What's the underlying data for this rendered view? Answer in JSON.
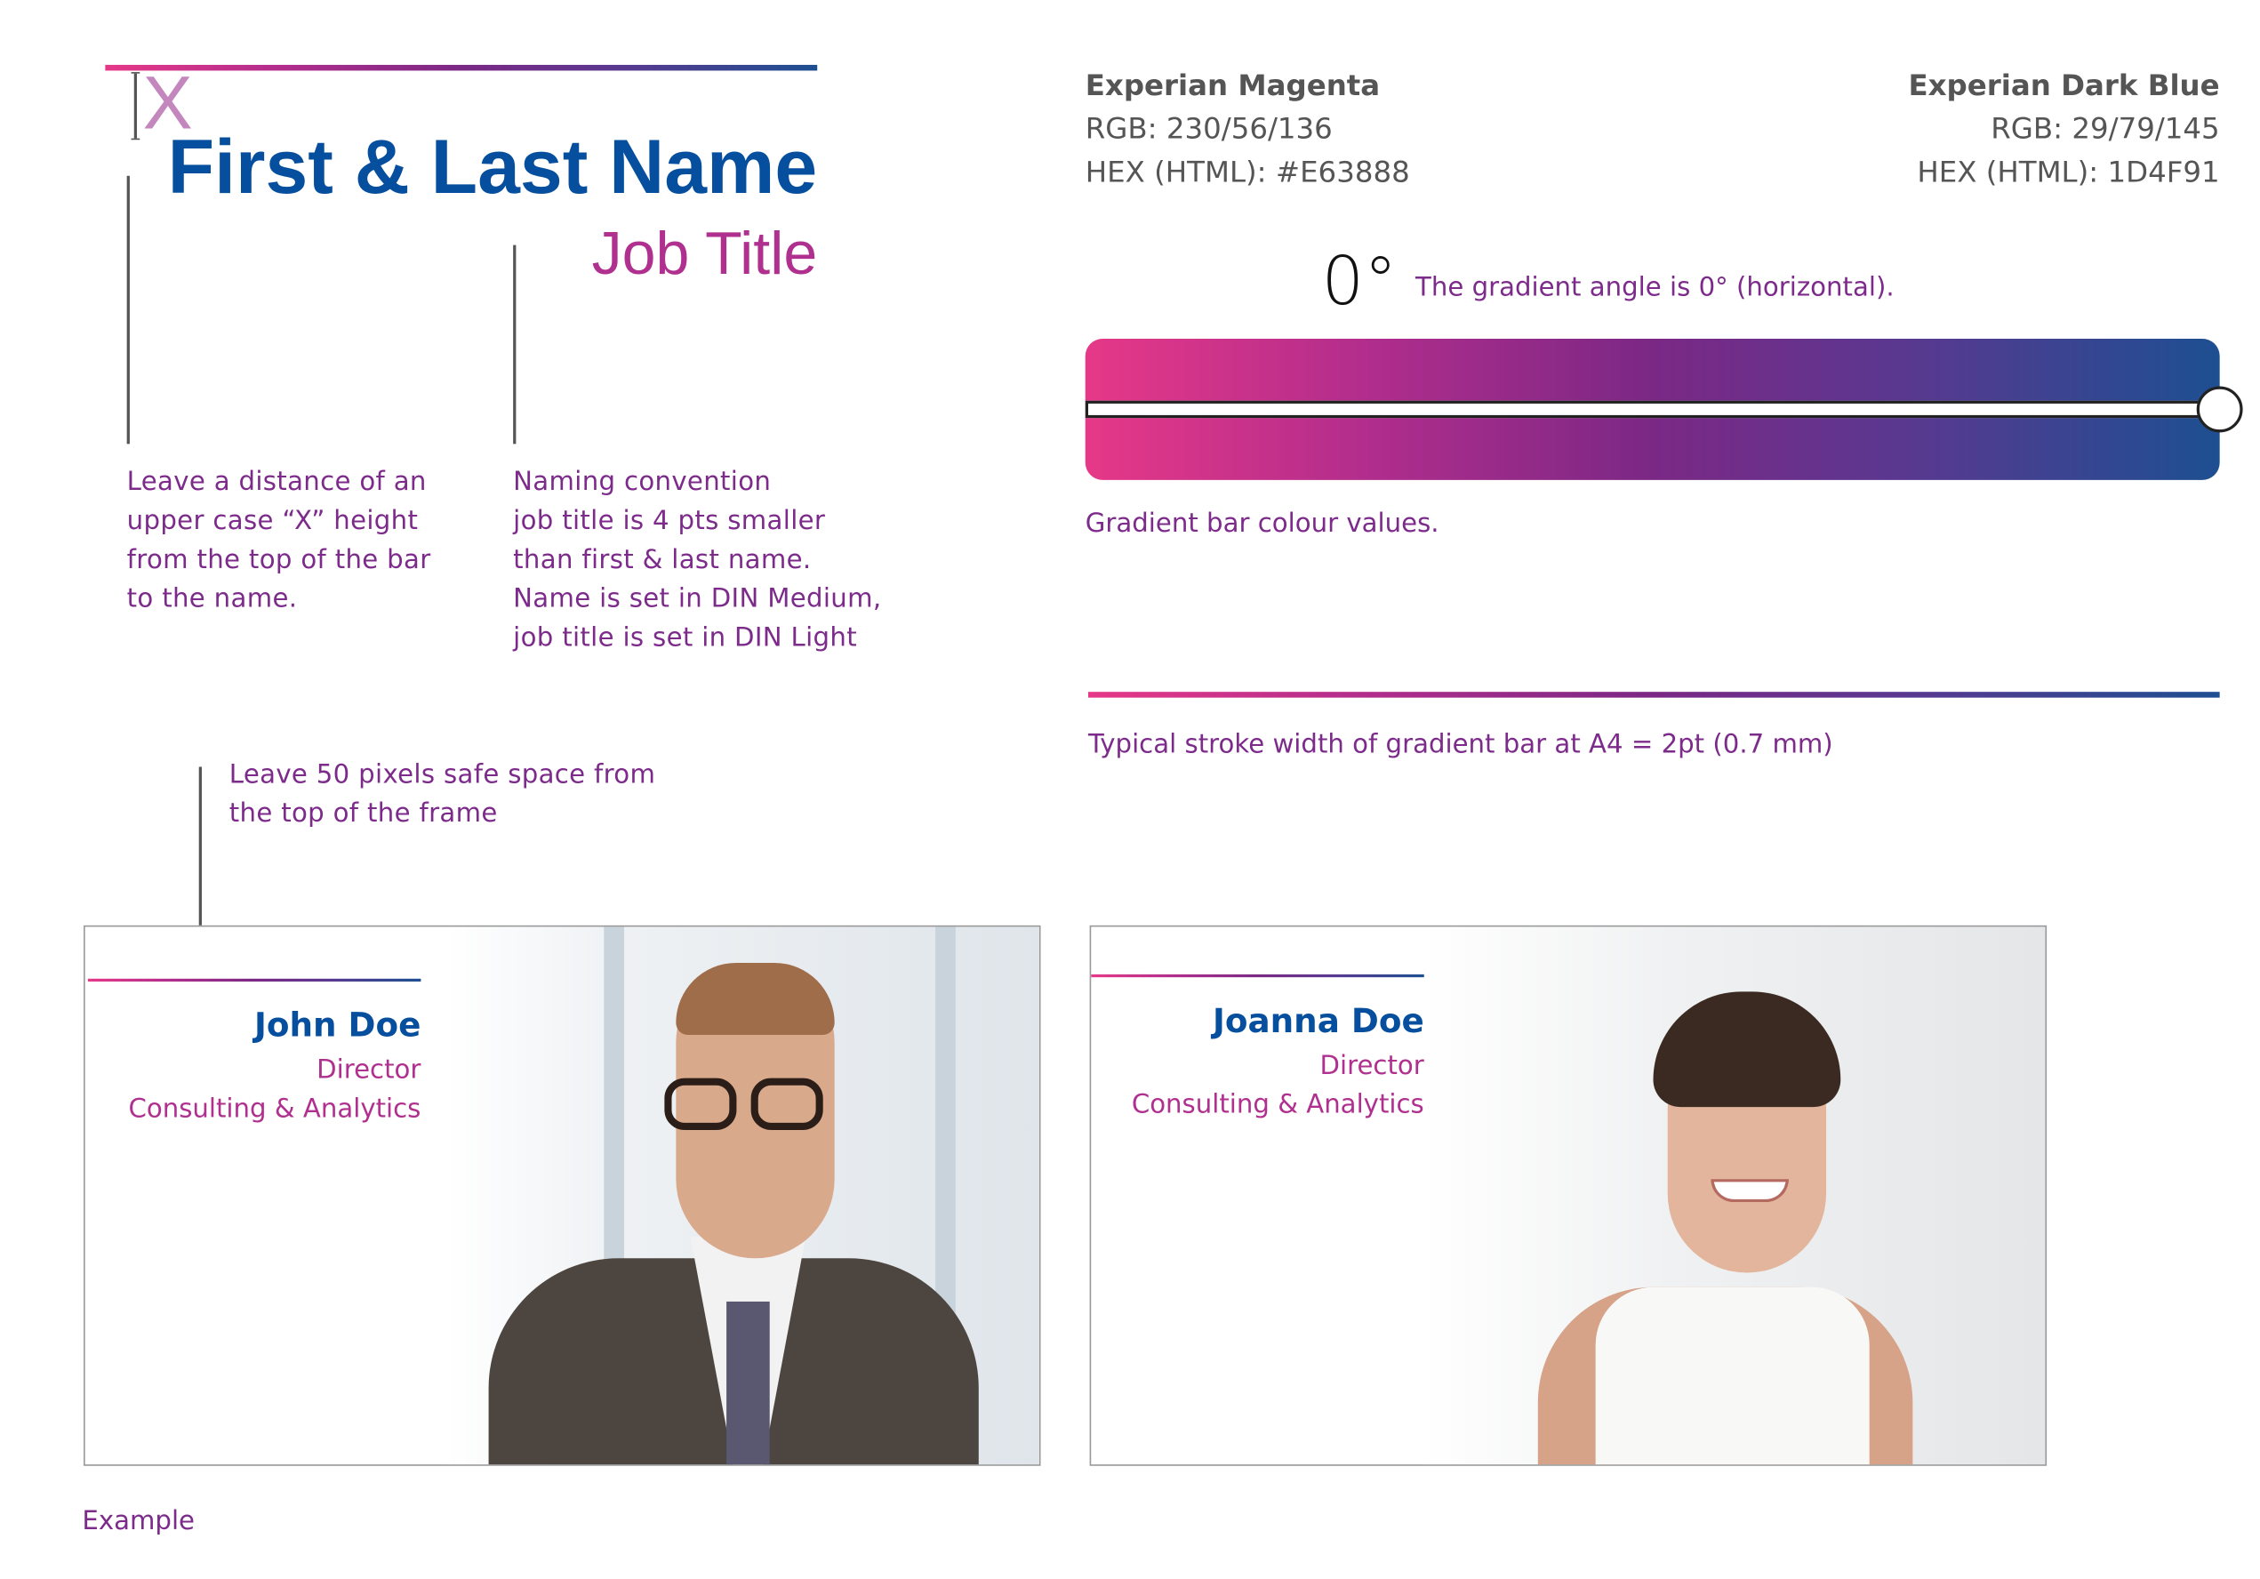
{
  "colors": {
    "magenta": "#E63888",
    "dark_blue": "#1D4F91",
    "name_blue": "#064f9e",
    "title_magenta": "#b0308f",
    "note_purple": "#7d2b8b"
  },
  "header_demo": {
    "x_marker": "X",
    "name": "First & Last Name",
    "job_title": "Job Title"
  },
  "notes": {
    "x_height": "Leave a distance of an\nupper case “X” height\nfrom the top of the bar\nto the name.",
    "naming": "Naming convention\njob title is 4 pts smaller\nthan first & last name.\nName is set in DIN Medium,\njob title is set in DIN Light",
    "safe_space": "Leave 50 pixels safe space from\nthe top of the frame",
    "gradient_values": "Gradient bar colour values.",
    "stroke_width": "Typical stroke width of gradient bar at A4 = 2pt (0.7 mm)",
    "example": "Example"
  },
  "swatches": [
    {
      "name": "Experian Magenta",
      "rgb": "RGB: 230/56/136",
      "hex": "HEX (HTML): #E63888"
    },
    {
      "name": "Experian Dark Blue",
      "rgb": "RGB: 29/79/145",
      "hex": "HEX (HTML): 1D4F91"
    }
  ],
  "angle": {
    "value": "0°",
    "caption": "The gradient angle is 0° (horizontal)."
  },
  "cards": [
    {
      "name": "John Doe",
      "title": "Director",
      "department": "Consulting & Analytics"
    },
    {
      "name": "Joanna Doe",
      "title": "Director",
      "department": "Consulting & Analytics"
    }
  ]
}
